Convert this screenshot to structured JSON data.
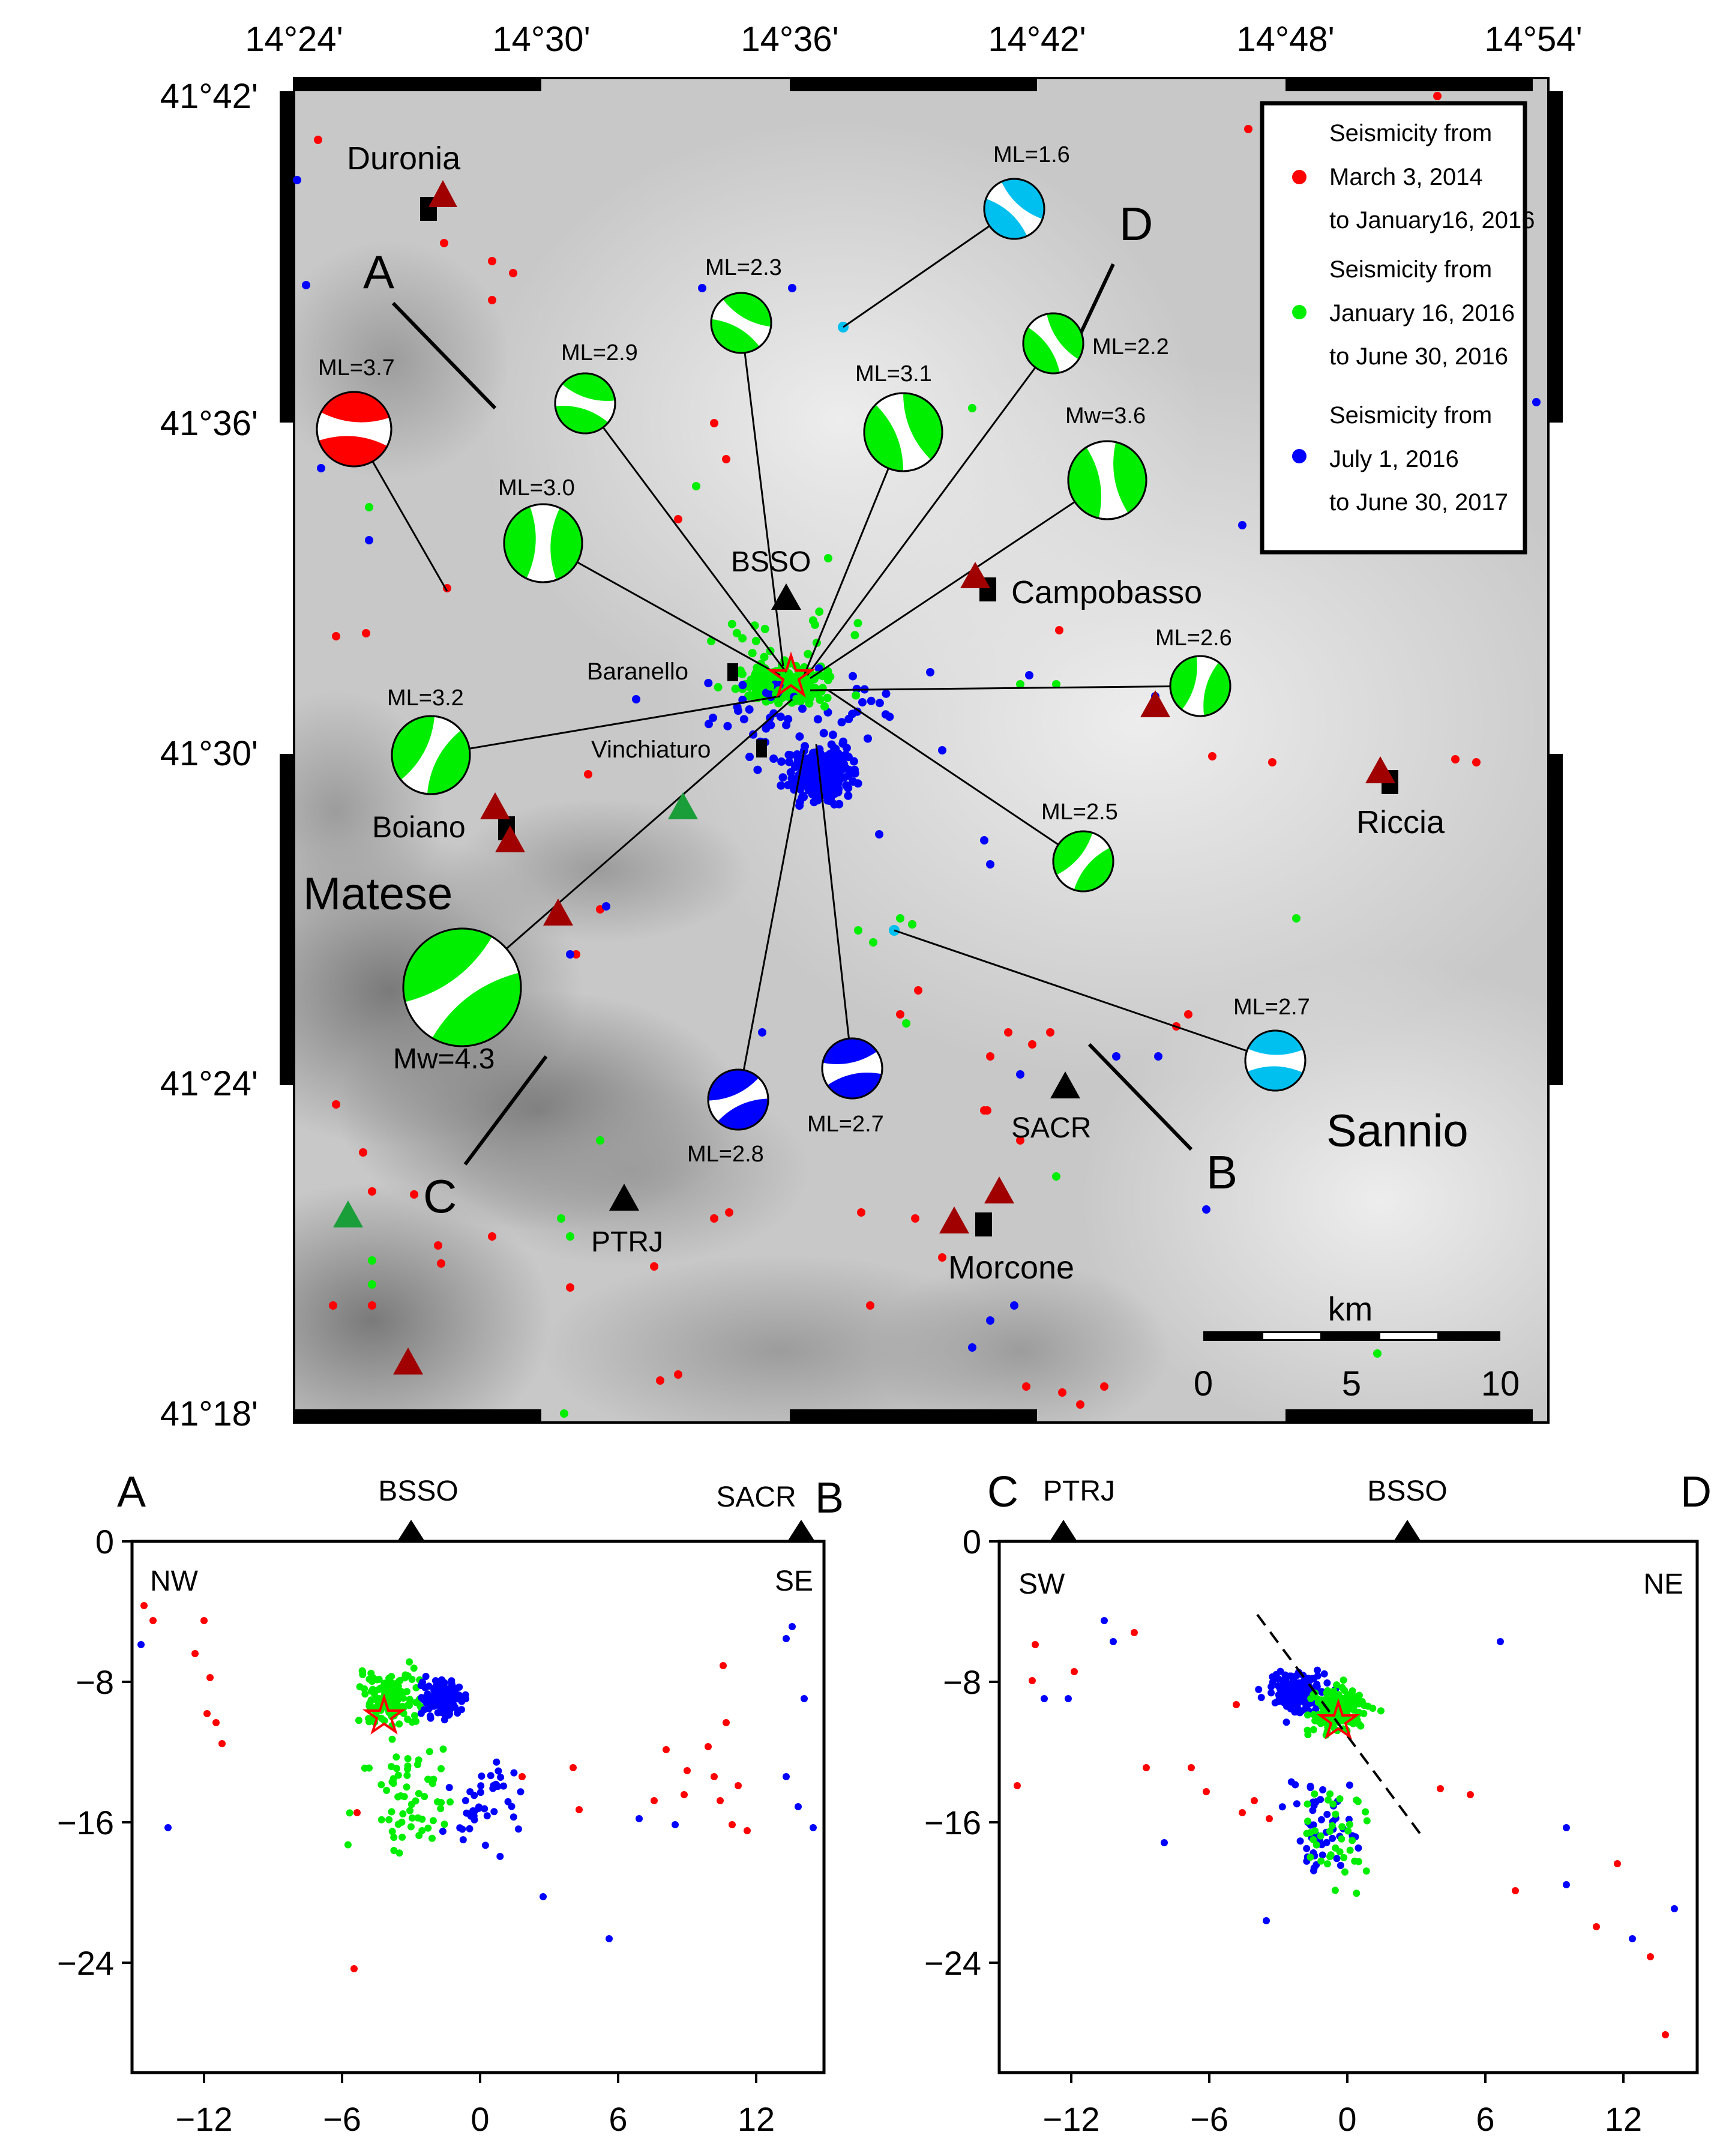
{
  "map": {
    "top_axis_labels": [
      "14°24'",
      "14°30'",
      "14°36'",
      "14°42'",
      "14°48'",
      "14°54'"
    ],
    "left_axis_labels": [
      "41°42'",
      "41°36'",
      "41°30'",
      "41°24'",
      "41°18'"
    ],
    "places": [
      {
        "name": "Duronia"
      },
      {
        "name": "Campobasso"
      },
      {
        "name": "Baranello"
      },
      {
        "name": "Vinchiaturo"
      },
      {
        "name": "Boiano"
      },
      {
        "name": "Riccia"
      },
      {
        "name": "Morcone"
      }
    ],
    "regions": [
      "Matese",
      "Sannio"
    ],
    "stations": [
      "BSSO",
      "SACR",
      "PTRJ"
    ],
    "profile_ends": [
      "A",
      "B",
      "C",
      "D"
    ],
    "mechanisms": [
      {
        "label": "ML=3.7",
        "color": "#ff0000"
      },
      {
        "label": "ML=2.9",
        "color": "#00ee00"
      },
      {
        "label": "ML=2.3",
        "color": "#00ee00"
      },
      {
        "label": "ML=1.6",
        "color": "#00c0f0"
      },
      {
        "label": "ML=2.2",
        "color": "#00ee00"
      },
      {
        "label": "ML=3.1",
        "color": "#00ee00"
      },
      {
        "label": "Mw=3.6",
        "color": "#00ee00"
      },
      {
        "label": "ML=3.0",
        "color": "#00ee00"
      },
      {
        "label": "ML=2.6",
        "color": "#00ee00"
      },
      {
        "label": "ML=3.2",
        "color": "#00ee00"
      },
      {
        "label": "ML=2.5",
        "color": "#00ee00"
      },
      {
        "label": "Mw=4.3",
        "color": "#00ee00"
      },
      {
        "label": "ML=2.8",
        "color": "#0000ff"
      },
      {
        "label": "ML=2.7",
        "color": "#0000ff"
      },
      {
        "label": "ML=2.7",
        "color": "#00c0f0"
      }
    ],
    "legend": [
      {
        "lines": [
          "Seismicity from",
          "March 3, 2014",
          "to January16, 2016"
        ],
        "color": "#ff0000"
      },
      {
        "lines": [
          "Seismicity from",
          "January 16, 2016",
          "to June 30, 2016"
        ],
        "color": "#00ee00"
      },
      {
        "lines": [
          "Seismicity from",
          "July 1, 2016",
          "to June 30, 2017"
        ],
        "color": "#0000ff"
      }
    ],
    "scalebar": {
      "unit": "km",
      "ticks": [
        "0",
        "5",
        "10"
      ]
    }
  },
  "section_ab": {
    "left_end": "A",
    "right_end": "B",
    "stations": [
      "BSSO",
      "SACR"
    ],
    "corner_left": "NW",
    "corner_right": "SE",
    "x_ticks": [
      "−12",
      "−6",
      "0",
      "6",
      "12"
    ],
    "y_ticks": [
      "0",
      "−8",
      "−16",
      "−24"
    ]
  },
  "section_cd": {
    "left_end": "C",
    "right_end": "D",
    "stations": [
      "PTRJ",
      "BSSO"
    ],
    "corner_left": "SW",
    "corner_right": "NE",
    "x_ticks": [
      "−12",
      "−6",
      "0",
      "6",
      "12"
    ],
    "y_ticks": [
      "0",
      "−8",
      "−16",
      "−24"
    ]
  },
  "colors": {
    "red": "#ff0000",
    "green": "#00ee00",
    "blue": "#0000ff",
    "cyan": "#00c0f0",
    "station": "#000000",
    "volcano": "#b00000"
  }
}
